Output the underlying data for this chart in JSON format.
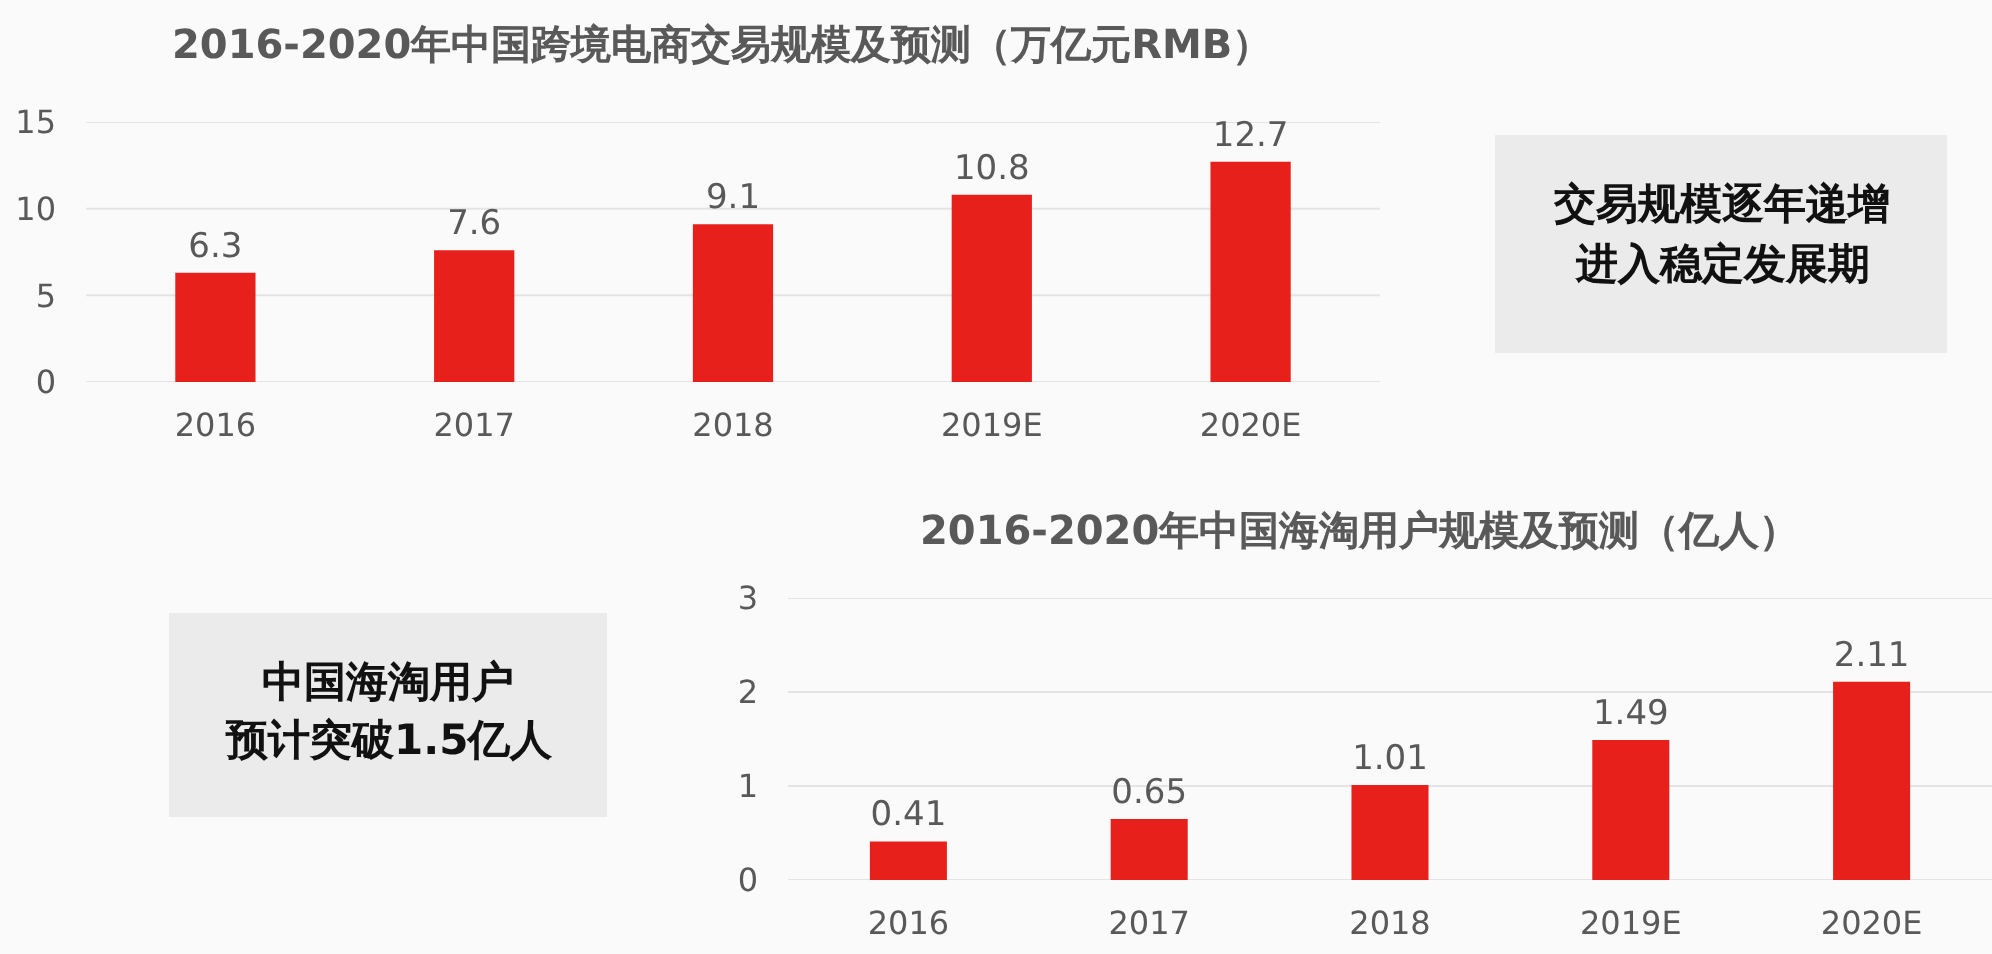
{
  "chart_data": [
    {
      "type": "bar",
      "title": "2016-2020年中国跨境电商交易规模及预测（万亿元RMB）",
      "categories": [
        "2016",
        "2017",
        "2018",
        "2019E",
        "2020E"
      ],
      "values": [
        6.3,
        7.6,
        9.1,
        10.8,
        12.7
      ],
      "color": "#e8201b",
      "ylim": [
        0,
        15
      ],
      "yticks": [
        0,
        5,
        10,
        15
      ],
      "grid": "y",
      "data_labels": true,
      "annotations": [
        "交易规模逐年递增",
        "进入稳定发展期"
      ]
    },
    {
      "type": "bar",
      "title": "2016-2020年中国海淘用户规模及预测（亿人）",
      "categories": [
        "2016",
        "2017",
        "2018",
        "2019E",
        "2020E"
      ],
      "values": [
        0.41,
        0.65,
        1.01,
        1.49,
        2.11
      ],
      "color": "#e8201b",
      "ylim": [
        0,
        3
      ],
      "yticks": [
        0,
        1,
        2,
        3
      ],
      "grid": "y",
      "data_labels": true,
      "annotations": [
        "中国海淘用户",
        "预计突破1.5亿人"
      ]
    }
  ]
}
